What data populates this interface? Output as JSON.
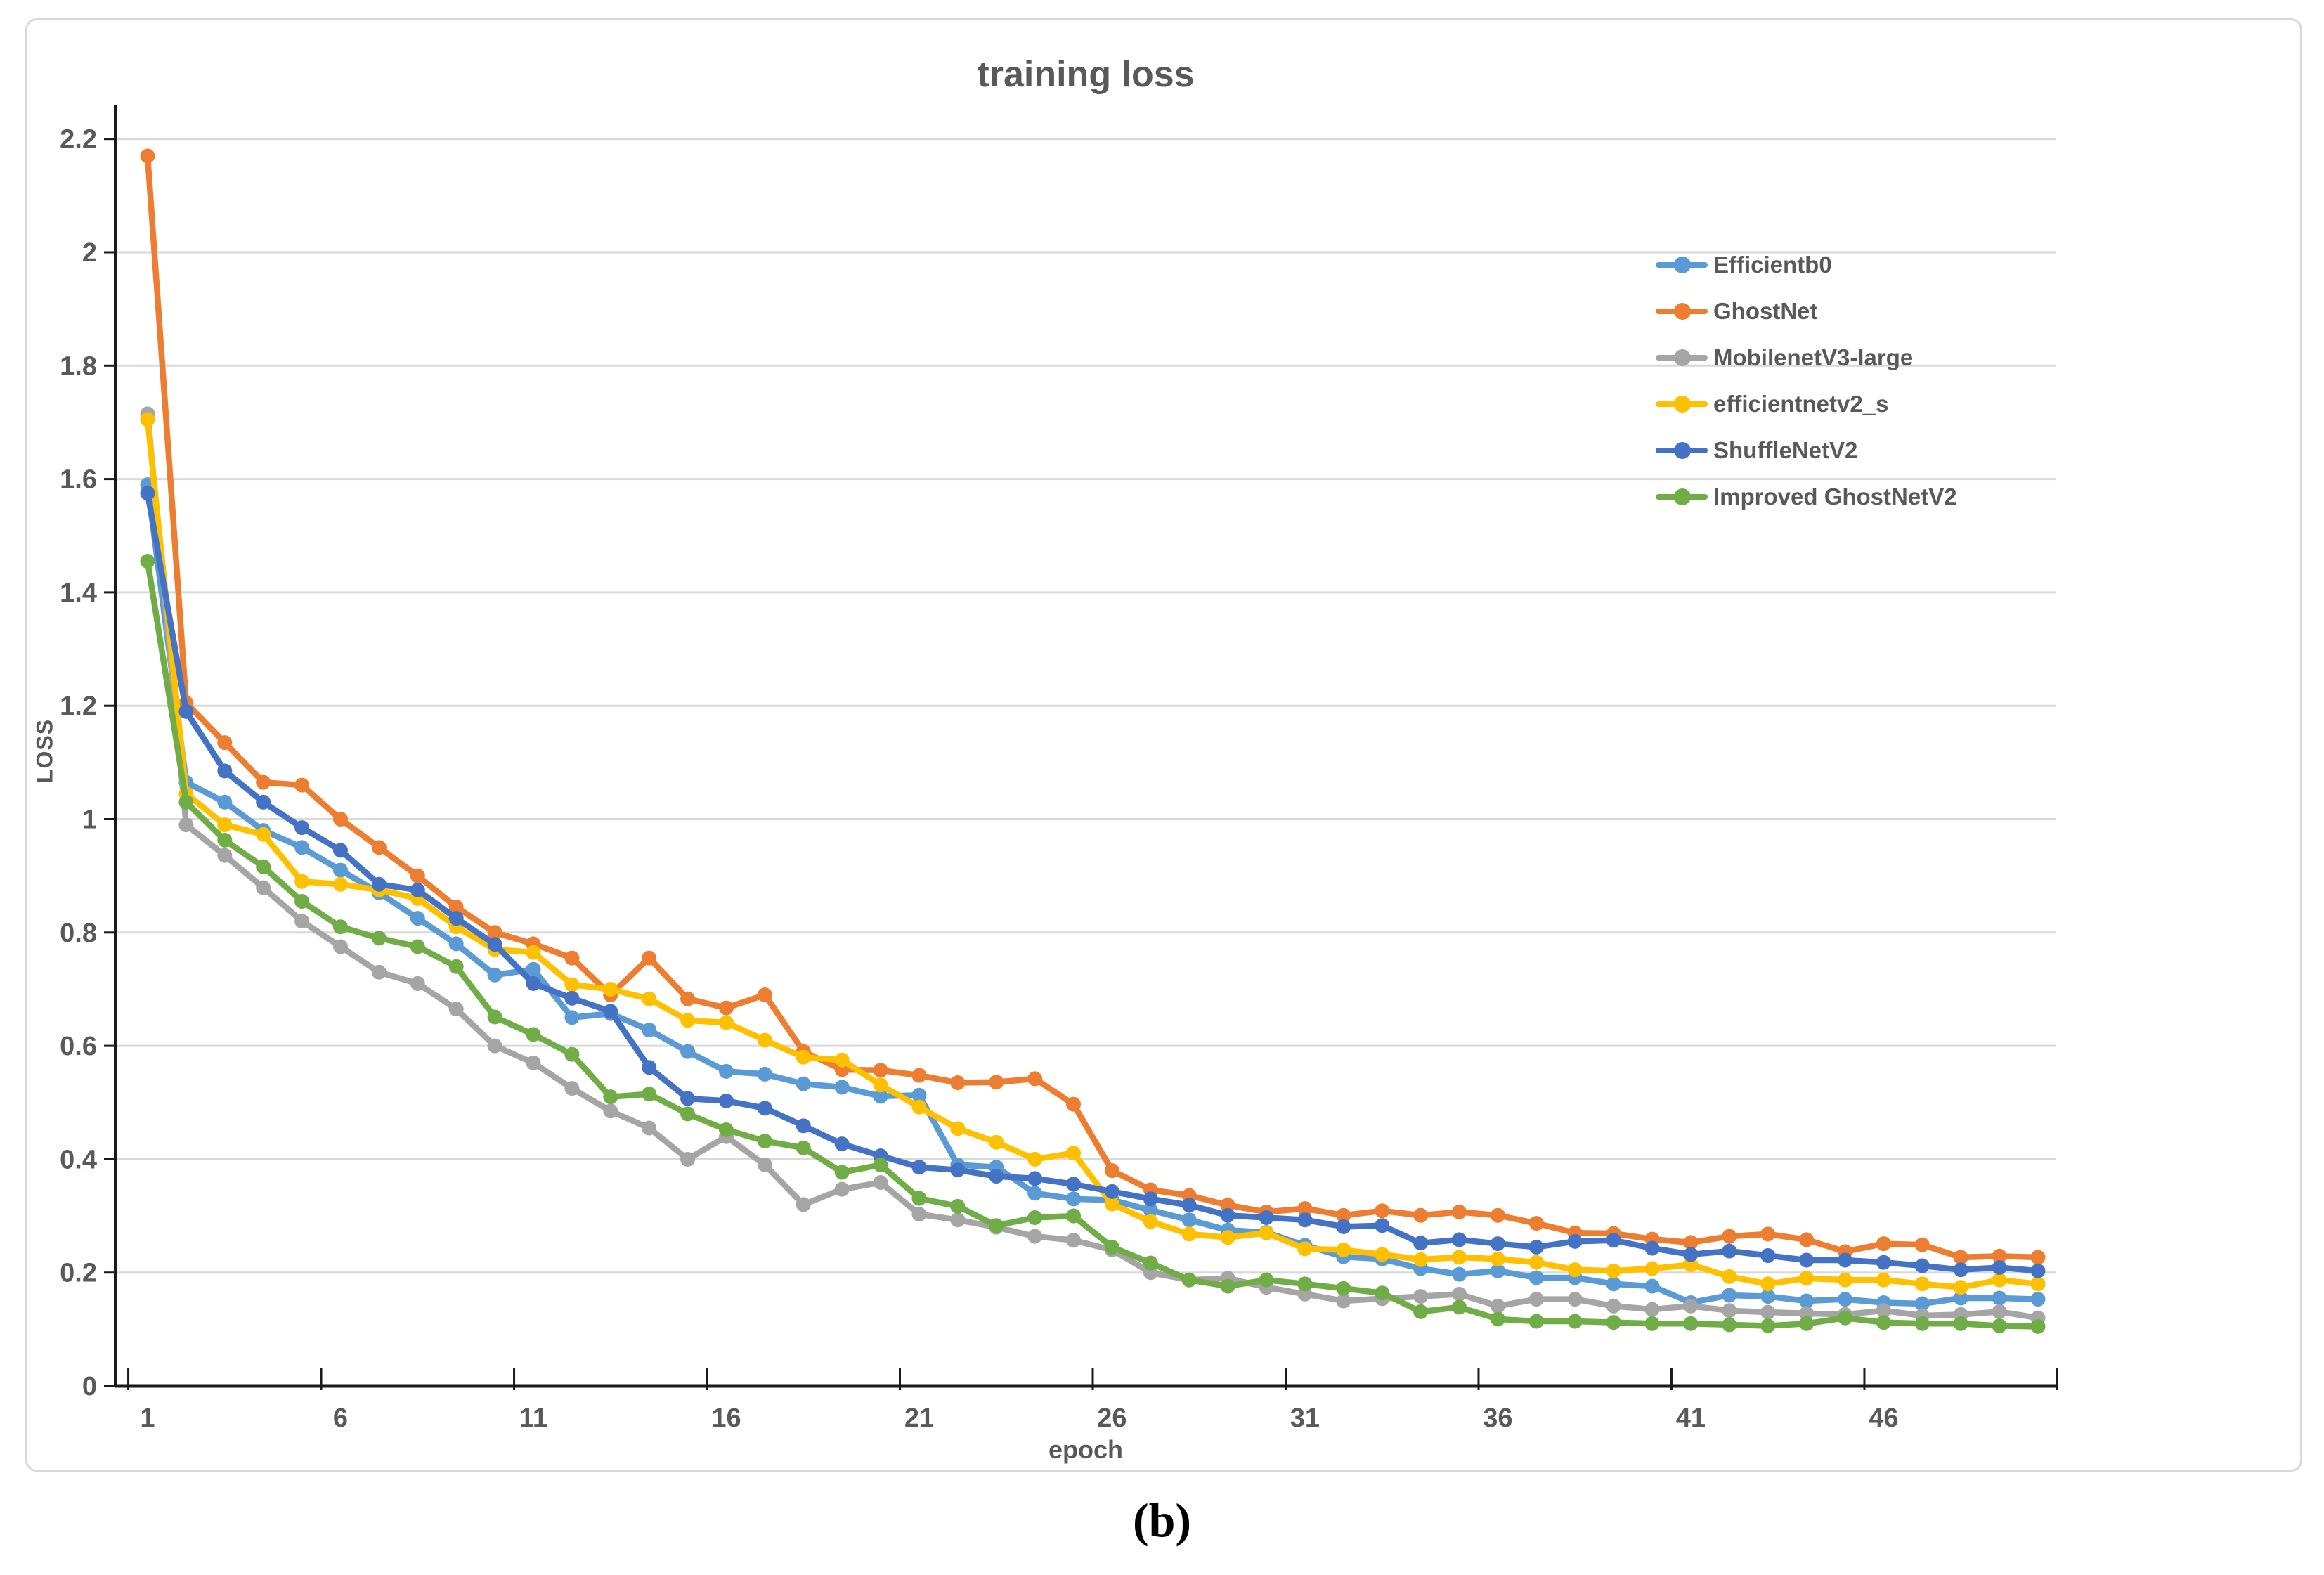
{
  "figure": {
    "title": "training loss",
    "x_axis_label": "epoch",
    "y_axis_label": "LOSS",
    "caption": "(b)"
  },
  "axes": {
    "y_tick_labels": [
      "0",
      "0.2",
      "0.4",
      "0.6",
      "0.8",
      "1",
      "1.2",
      "1.4",
      "1.6",
      "1.8",
      "2",
      "2.2"
    ],
    "y_tick_values": [
      0,
      0.2,
      0.4,
      0.6,
      0.8,
      1,
      1.2,
      1.4,
      1.6,
      1.8,
      2,
      2.2
    ],
    "x_tick_labels": [
      "1",
      "6",
      "11",
      "16",
      "21",
      "26",
      "31",
      "36",
      "41",
      "46"
    ],
    "x_tick_values": [
      1,
      6,
      11,
      16,
      21,
      26,
      31,
      36,
      41,
      46
    ]
  },
  "colors": {
    "grid": "#d9d9d9",
    "axis": "#1a1a1a",
    "text": "#595959",
    "frame": "#d9d9d9",
    "background": "#ffffff"
  },
  "chart_data": {
    "type": "line",
    "title": "training loss",
    "xlabel": "epoch",
    "ylabel": "LOSS",
    "xlim": [
      1,
      50
    ],
    "ylim": [
      0,
      2.26
    ],
    "grid": "horizontal",
    "legend_position": "right-inside",
    "markers": "circle",
    "x": [
      1,
      2,
      3,
      4,
      5,
      6,
      7,
      8,
      9,
      10,
      11,
      12,
      13,
      14,
      15,
      16,
      17,
      18,
      19,
      20,
      21,
      22,
      23,
      24,
      25,
      26,
      27,
      28,
      29,
      30,
      31,
      32,
      33,
      34,
      35,
      36,
      37,
      38,
      39,
      40,
      41,
      42,
      43,
      44,
      45,
      46,
      47,
      48,
      49,
      50
    ],
    "series": [
      {
        "name": "Efficientb0",
        "slug": "efficientb0",
        "color": "#5b9bd5",
        "values": [
          1.59,
          1.065,
          1.03,
          0.98,
          0.95,
          0.91,
          0.87,
          0.825,
          0.78,
          0.725,
          0.735,
          0.65,
          0.657,
          0.628,
          0.59,
          0.555,
          0.55,
          0.533,
          0.527,
          0.511,
          0.513,
          0.39,
          0.386,
          0.34,
          0.33,
          0.328,
          0.31,
          0.293,
          0.275,
          0.271,
          0.248,
          0.228,
          0.224,
          0.207,
          0.197,
          0.203,
          0.191,
          0.191,
          0.18,
          0.176,
          0.147,
          0.16,
          0.158,
          0.15,
          0.153,
          0.147,
          0.145,
          0.155,
          0.155,
          0.153
        ]
      },
      {
        "name": "GhostNet",
        "slug": "ghostnet",
        "color": "#ed7d31",
        "values": [
          2.17,
          1.205,
          1.135,
          1.065,
          1.06,
          1.0,
          0.95,
          0.9,
          0.845,
          0.8,
          0.78,
          0.755,
          0.69,
          0.755,
          0.683,
          0.667,
          0.69,
          0.59,
          0.558,
          0.557,
          0.548,
          0.535,
          0.536,
          0.542,
          0.497,
          0.38,
          0.346,
          0.336,
          0.319,
          0.307,
          0.313,
          0.301,
          0.309,
          0.301,
          0.307,
          0.301,
          0.287,
          0.27,
          0.269,
          0.259,
          0.253,
          0.264,
          0.268,
          0.258,
          0.237,
          0.251,
          0.249,
          0.227,
          0.229,
          0.227
        ]
      },
      {
        "name": "MobilenetV3-large",
        "slug": "mobilenetv3-large",
        "color": "#a5a5a5",
        "values": [
          1.715,
          0.99,
          0.936,
          0.879,
          0.82,
          0.775,
          0.73,
          0.71,
          0.665,
          0.6,
          0.57,
          0.525,
          0.485,
          0.455,
          0.4,
          0.44,
          0.39,
          0.32,
          0.347,
          0.359,
          0.303,
          0.293,
          0.28,
          0.264,
          0.257,
          0.24,
          0.2,
          0.187,
          0.19,
          0.174,
          0.162,
          0.15,
          0.154,
          0.158,
          0.162,
          0.141,
          0.153,
          0.153,
          0.141,
          0.135,
          0.141,
          0.133,
          0.13,
          0.128,
          0.126,
          0.133,
          0.124,
          0.126,
          0.131,
          0.12
        ]
      },
      {
        "name": "efficientnetv2_s",
        "slug": "efficientnetv2-s",
        "color": "#ffc000",
        "values": [
          1.705,
          1.045,
          0.99,
          0.973,
          0.89,
          0.885,
          0.875,
          0.86,
          0.81,
          0.77,
          0.765,
          0.708,
          0.7,
          0.683,
          0.645,
          0.641,
          0.61,
          0.58,
          0.575,
          0.531,
          0.492,
          0.454,
          0.43,
          0.4,
          0.411,
          0.321,
          0.29,
          0.268,
          0.262,
          0.27,
          0.242,
          0.24,
          0.232,
          0.223,
          0.227,
          0.224,
          0.218,
          0.205,
          0.203,
          0.207,
          0.214,
          0.193,
          0.18,
          0.19,
          0.187,
          0.187,
          0.18,
          0.174,
          0.187,
          0.18
        ]
      },
      {
        "name": "ShuffleNetV2",
        "slug": "shufflenetv2",
        "color": "#4472c4",
        "values": [
          1.575,
          1.19,
          1.085,
          1.03,
          0.985,
          0.945,
          0.885,
          0.875,
          0.825,
          0.779,
          0.71,
          0.684,
          0.661,
          0.562,
          0.507,
          0.503,
          0.49,
          0.459,
          0.427,
          0.406,
          0.386,
          0.381,
          0.37,
          0.366,
          0.356,
          0.343,
          0.33,
          0.319,
          0.301,
          0.297,
          0.293,
          0.281,
          0.283,
          0.252,
          0.258,
          0.251,
          0.245,
          0.255,
          0.257,
          0.243,
          0.232,
          0.238,
          0.23,
          0.222,
          0.222,
          0.218,
          0.212,
          0.205,
          0.209,
          0.203
        ]
      },
      {
        "name": "Improved GhostNetV2",
        "slug": "improved-ghostnetv2",
        "color": "#70ad47",
        "values": [
          1.455,
          1.03,
          0.963,
          0.916,
          0.855,
          0.81,
          0.79,
          0.775,
          0.74,
          0.651,
          0.62,
          0.585,
          0.51,
          0.515,
          0.48,
          0.452,
          0.432,
          0.42,
          0.377,
          0.39,
          0.331,
          0.317,
          0.283,
          0.297,
          0.3,
          0.245,
          0.217,
          0.187,
          0.176,
          0.187,
          0.18,
          0.172,
          0.164,
          0.131,
          0.139,
          0.118,
          0.114,
          0.114,
          0.112,
          0.11,
          0.11,
          0.108,
          0.106,
          0.11,
          0.12,
          0.112,
          0.11,
          0.11,
          0.106,
          0.105
        ]
      }
    ]
  }
}
